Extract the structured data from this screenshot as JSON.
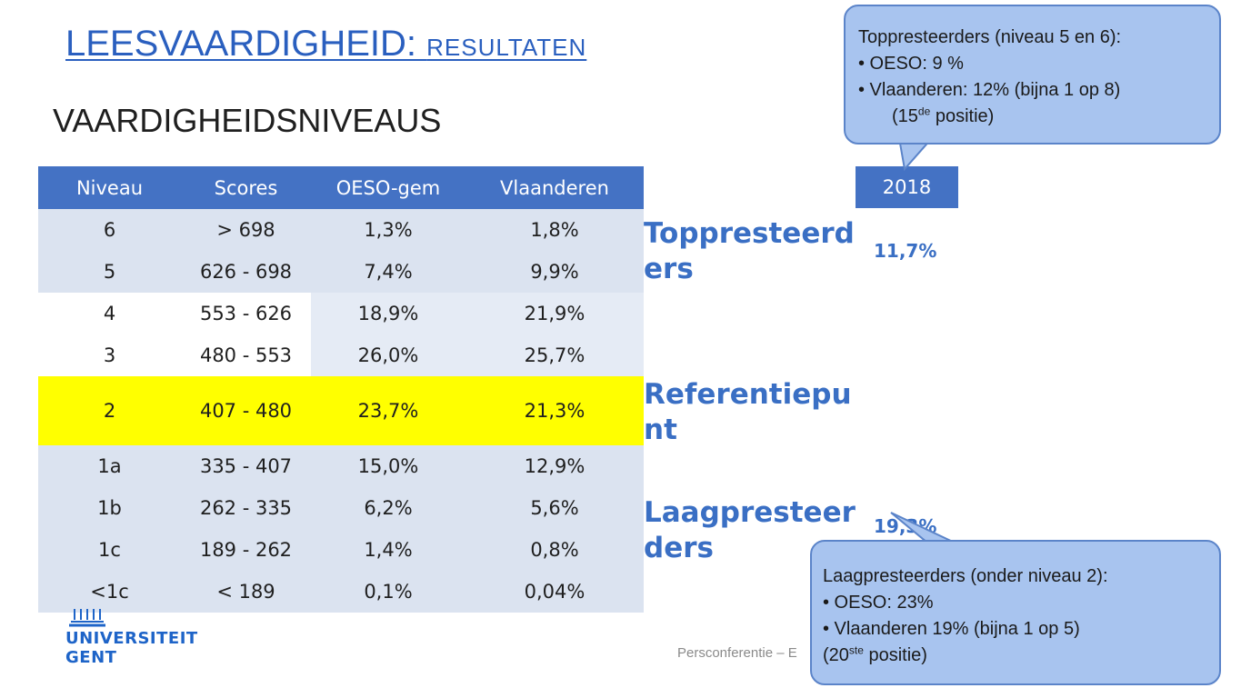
{
  "title": {
    "main": "LEESVAARDIGHEID: ",
    "sub": "RESULTATEN"
  },
  "subtitle": "VAARDIGHEIDSNIVEAUS",
  "table": {
    "headers": [
      "Niveau",
      "Scores",
      "OESO-gem",
      "Vlaanderen"
    ],
    "rows": [
      [
        "6",
        "> 698",
        "1,3%",
        "1,8%"
      ],
      [
        "5",
        "626 - 698",
        "7,4%",
        "9,9%"
      ],
      [
        "4",
        "553 - 626",
        "18,9%",
        "21,9%"
      ],
      [
        "3",
        "480 - 553",
        "26,0%",
        "25,7%"
      ],
      [
        "2",
        "407 - 480",
        "23,7%",
        "21,3%"
      ],
      [
        "1a",
        "335 - 407",
        "15,0%",
        "12,9%"
      ],
      [
        "1b",
        "262 - 335",
        "6,2%",
        "5,6%"
      ],
      [
        "1c",
        "189 - 262",
        "1,4%",
        "0,8%"
      ],
      [
        "<1c",
        "< 189",
        "0,1%",
        "0,04%"
      ]
    ],
    "highlight_row_color": "#ffff00",
    "header_color": "#4472c4"
  },
  "year_header": "2018",
  "categories": {
    "top": "Toppresteerders",
    "reference": "Referentiepunt",
    "low": "Laagpresteerders"
  },
  "values": {
    "top": "11,7%",
    "low": "19,3%"
  },
  "callout_top": {
    "line1": "Toppresteerders (niveau 5 en 6):",
    "line2": "• OESO: 9 %",
    "line3": "• Vlaanderen:  12% (bijna 1 op 8)",
    "line4_pre": "(15",
    "line4_sup": "de",
    "line4_post": " positie)"
  },
  "callout_low": {
    "line1": "Laagpresteerders (onder niveau 2):",
    "line2": "• OESO: 23%",
    "line3": "• Vlaanderen 19% (bijna 1 op 5)",
    "line4_pre": "(20",
    "line4_sup": "ste",
    "line4_post": " positie)"
  },
  "footer": "Persconferentie – E",
  "logo": {
    "line1": "UNIVERSITEIT",
    "line2": "GENT"
  }
}
